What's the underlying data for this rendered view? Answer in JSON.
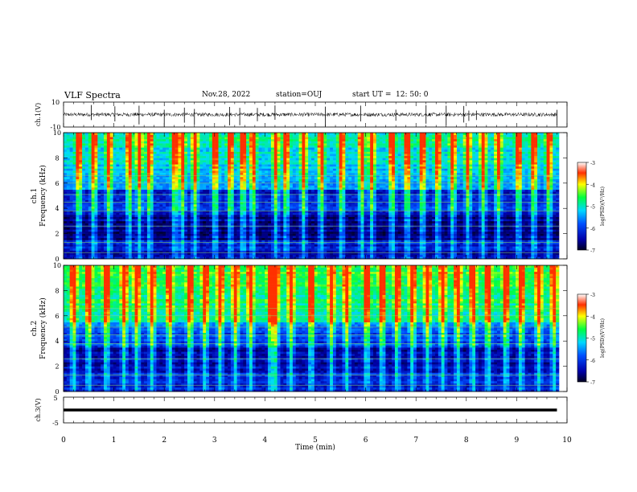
{
  "header": {
    "title": "VLF Spectra",
    "date": "Nov.28, 2022",
    "station": "station=OUJ",
    "start_label": "start UT =",
    "start_time": "12: 50: 0"
  },
  "chart_data": [
    {
      "type": "line",
      "panel": "ch1-waveform",
      "ylabel": "ch.1(V)",
      "ylim": [
        -10,
        10
      ],
      "yticks": [
        "10",
        "-10"
      ],
      "xlim": [
        0,
        10
      ],
      "baseline": 0,
      "noise_amplitude": 1.5,
      "spike_times_min": [
        0.55,
        1.02,
        1.5,
        2.0,
        2.4,
        2.6,
        3.3,
        3.5,
        3.85,
        4.2,
        5.2,
        5.9,
        6.6,
        7.2,
        7.6,
        7.95,
        8.05,
        8.2,
        9.8
      ]
    },
    {
      "type": "heatmap",
      "panel": "ch1-spectrogram",
      "ylabel": "ch.1\nFrequency (kHz)",
      "ylabel_line1": "ch.1",
      "ylabel_line2": "Frequency (kHz)",
      "ylim": [
        0,
        10
      ],
      "yticks": [
        "0",
        "2",
        "4",
        "6",
        "8",
        "10"
      ],
      "xlim": [
        0,
        10
      ],
      "colorbar": {
        "label": "log(PSD)(V²/Hz)",
        "range": [
          -7,
          -3
        ],
        "ticks": [
          "-3",
          "-4",
          "-5",
          "-6",
          "-7"
        ]
      },
      "sferic_times_min": [
        0.3,
        0.6,
        0.9,
        1.3,
        1.5,
        1.7,
        2.2,
        2.35,
        2.6,
        3.0,
        3.3,
        3.55,
        3.75,
        4.2,
        4.4,
        4.75,
        5.1,
        5.5,
        5.9,
        6.1,
        6.5,
        6.8,
        7.1,
        7.4,
        7.7,
        8.0,
        8.3,
        8.6,
        9.0,
        9.3,
        9.6
      ]
    },
    {
      "type": "heatmap",
      "panel": "ch2-spectrogram",
      "ylabel": "ch.2\nFrequency (kHz)",
      "ylabel_line1": "ch.2",
      "ylabel_line2": "Frequency (kHz)",
      "ylim": [
        0,
        10
      ],
      "yticks": [
        "0",
        "2",
        "4",
        "6",
        "8",
        "10"
      ],
      "xlim": [
        0,
        10
      ],
      "colorbar": {
        "label": "log(PSD)(V²/Hz)",
        "range": [
          -7,
          -3
        ],
        "ticks": [
          "-3",
          "-4",
          "-5",
          "-6",
          "-7"
        ]
      },
      "sferic_times_min": [
        0.2,
        0.5,
        0.85,
        1.2,
        1.45,
        1.75,
        2.1,
        2.5,
        2.8,
        3.1,
        3.4,
        3.7,
        4.1,
        4.2,
        4.5,
        4.9,
        5.3,
        5.6,
        6.0,
        6.3,
        6.6,
        6.9,
        7.2,
        7.5,
        7.8,
        8.1,
        8.4,
        8.75,
        9.05,
        9.4,
        9.7
      ]
    },
    {
      "type": "line",
      "panel": "ch3-waveform",
      "ylabel": "ch.3(V)",
      "ylim": [
        -5,
        5
      ],
      "yticks": [
        "5",
        "-5"
      ],
      "xlim": [
        0,
        10
      ],
      "baseline": 0,
      "xlabel": "Time (min)",
      "xticks": [
        "0",
        "1",
        "2",
        "3",
        "4",
        "5",
        "6",
        "7",
        "8",
        "9",
        "10"
      ]
    }
  ]
}
